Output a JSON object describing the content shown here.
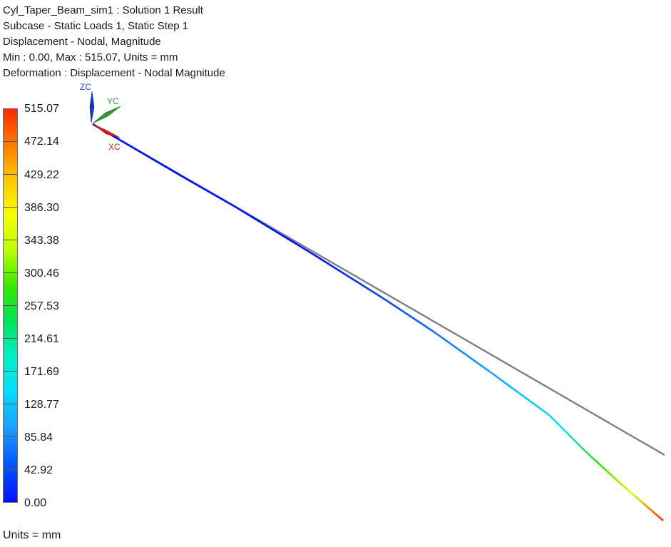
{
  "header": {
    "line1": "Cyl_Taper_Beam_sim1 : Solution 1 Result",
    "line2": "Subcase - Static Loads 1, Static Step 1",
    "line3": "Displacement - Nodal, Magnitude",
    "line4": "Min : 0.00, Max : 515.07, Units = mm",
    "line5": "Deformation : Displacement - Nodal Magnitude"
  },
  "legend": {
    "labels": [
      "515.07",
      "472.14",
      "429.22",
      "386.30",
      "343.38",
      "300.46",
      "257.53",
      "214.61",
      "171.69",
      "128.77",
      "85.84",
      "42.92",
      "0.00"
    ]
  },
  "triad": {
    "z": "ZC",
    "y": "YC",
    "x": "XC"
  },
  "footer": {
    "units": "Units = mm"
  },
  "colors": {
    "undeformed": "#7f7f7f",
    "max": "#ff2a00",
    "min": "#0010ff"
  }
}
